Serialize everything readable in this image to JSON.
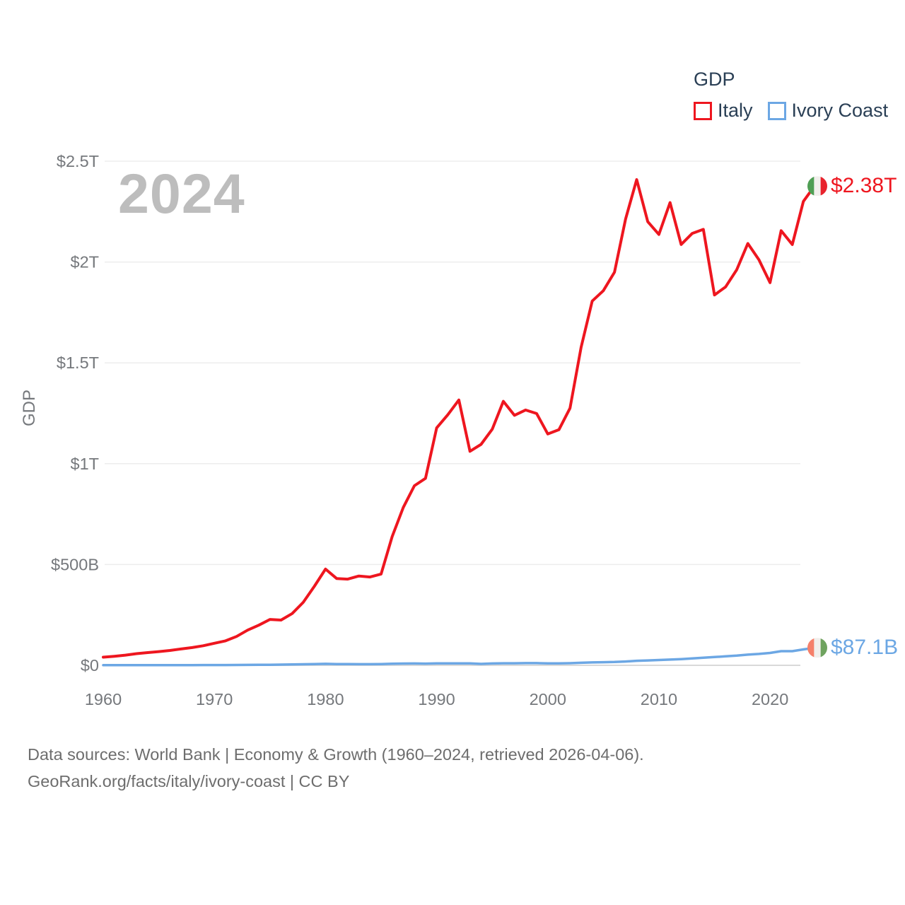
{
  "legend": {
    "title": "GDP",
    "items": [
      {
        "label": "Italy"
      },
      {
        "label": "Ivory Coast"
      }
    ]
  },
  "footer": {
    "line1": "Data sources: World Bank | Economy & Growth (1960–2024, retrieved 2026-04-06).",
    "line2": "GeoRank.org/facts/italy/ivory-coast | CC BY"
  },
  "chart_data": {
    "type": "line",
    "title": "GDP",
    "watermark": "2024",
    "ylabel": "GDP",
    "grid": true,
    "legend_position": "top-right",
    "xlim": [
      1960,
      2024
    ],
    "ylim_billions": [
      0,
      2500
    ],
    "x_ticks": [
      1960,
      1970,
      1980,
      1990,
      2000,
      2010,
      2020
    ],
    "y_ticks": [
      {
        "value": 0,
        "label": "$0"
      },
      {
        "value": 500,
        "label": "$500B"
      },
      {
        "value": 1000,
        "label": "$1T"
      },
      {
        "value": 1500,
        "label": "$1.5T"
      },
      {
        "value": 2000,
        "label": "$2T"
      },
      {
        "value": 2500,
        "label": "$2.5T"
      }
    ],
    "years": [
      1960,
      1961,
      1962,
      1963,
      1964,
      1965,
      1966,
      1967,
      1968,
      1969,
      1970,
      1971,
      1972,
      1973,
      1974,
      1975,
      1976,
      1977,
      1978,
      1979,
      1980,
      1981,
      1982,
      1983,
      1984,
      1985,
      1986,
      1987,
      1988,
      1989,
      1990,
      1991,
      1992,
      1993,
      1994,
      1995,
      1996,
      1997,
      1998,
      1999,
      2000,
      2001,
      2002,
      2003,
      2004,
      2005,
      2006,
      2007,
      2008,
      2009,
      2010,
      2011,
      2012,
      2013,
      2014,
      2015,
      2016,
      2017,
      2018,
      2019,
      2020,
      2021,
      2022,
      2023,
      2024
    ],
    "series": [
      {
        "name": "Italy",
        "color": "#ee161f",
        "line_width": 4,
        "end_label": "$2.38T",
        "flag_colors": [
          "#4f9e54",
          "#f1efec",
          "#e8232d"
        ],
        "values_billions": [
          40.4,
          44.8,
          50.4,
          57.7,
          63.2,
          68.0,
          73.7,
          81.1,
          87.9,
          97.1,
          109.4,
          121.2,
          142.9,
          174.7,
          199.2,
          227.4,
          224.3,
          256.8,
          312.5,
          392.4,
          477.3,
          430.7,
          427.3,
          442.9,
          437.9,
          452.7,
          638.9,
          783.0,
          890.6,
          926.9,
          1177.3,
          1242.3,
          1315.8,
          1061.4,
          1095.7,
          1170.8,
          1309.4,
          1239.9,
          1266.3,
          1248.6,
          1147.2,
          1168.4,
          1275.3,
          1577.2,
          1806.6,
          1857.5,
          1949.6,
          2213.1,
          2408.7,
          2199.9,
          2136.9,
          2295.0,
          2087.0,
          2141.9,
          2162.0,
          1836.6,
          1877.1,
          1961.8,
          2091.9,
          2011.3,
          1897.5,
          2155.4,
          2086.6,
          2300.9,
          2376.5
        ]
      },
      {
        "name": "Ivory Coast",
        "color": "#6ca7e4",
        "line_width": 3.5,
        "end_label": "$87.1B",
        "flag_colors": [
          "#f5806a",
          "#f1efec",
          "#6fa35f"
        ],
        "values_billions": [
          0.55,
          0.62,
          0.62,
          0.7,
          0.85,
          0.88,
          0.95,
          1.01,
          1.15,
          1.26,
          1.4,
          1.47,
          1.62,
          1.97,
          2.53,
          2.94,
          3.45,
          4.51,
          5.32,
          5.97,
          7.22,
          6.42,
          6.21,
          5.76,
          5.58,
          6.21,
          7.91,
          8.9,
          8.99,
          8.48,
          9.53,
          9.4,
          9.72,
          9.32,
          6.96,
          9.02,
          10.18,
          10.1,
          10.92,
          11.04,
          9.52,
          9.61,
          10.55,
          12.55,
          14.28,
          15.37,
          16.38,
          19.04,
          22.38,
          24.28,
          26.4,
          28.5,
          31.0,
          34.5,
          38.0,
          41.0,
          44.5,
          48.0,
          53.0,
          56.5,
          61.3,
          70.0,
          70.2,
          78.9,
          87.1
        ]
      }
    ]
  }
}
